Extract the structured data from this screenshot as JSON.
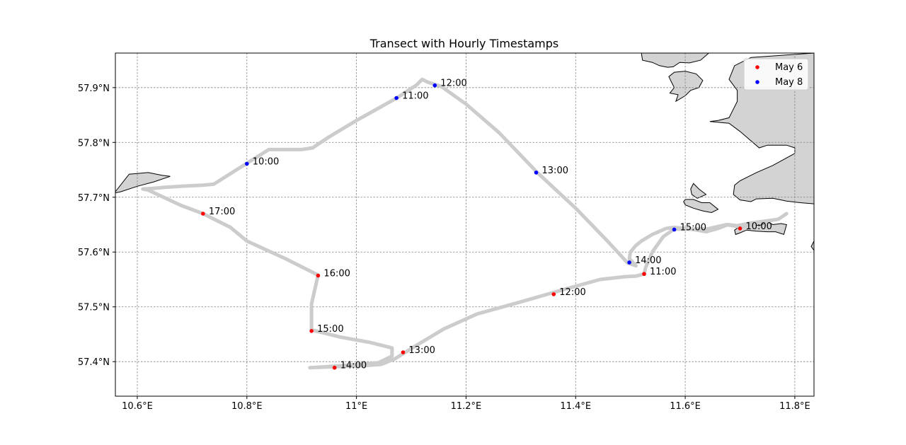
{
  "chart_data": {
    "type": "map",
    "title": "Transect with Hourly Timestamps",
    "xlim": [
      10.56,
      11.835
    ],
    "ylim": [
      57.337,
      57.963
    ],
    "x_ticks": [
      10.6,
      10.8,
      11.0,
      11.2,
      11.4,
      11.6,
      11.8
    ],
    "x_tick_labels": [
      "10.6°E",
      "10.8°E",
      "11°E",
      "11.2°E",
      "11.4°E",
      "11.6°E",
      "11.8°E"
    ],
    "y_ticks": [
      57.4,
      57.5,
      57.6,
      57.7,
      57.8,
      57.9
    ],
    "y_tick_labels": [
      "57.4°N",
      "57.5°N",
      "57.6°N",
      "57.7°N",
      "57.8°N",
      "57.9°N"
    ],
    "grid": true,
    "legend_position": "top-right",
    "colors": {
      "track": "#cccccc",
      "land_fill": "#d3d3d3",
      "land_edge": "#000000",
      "may6": "#ff0000",
      "may8": "#0000ff",
      "grid": "#808080"
    },
    "track": [
      [
        10.915,
        57.389
      ],
      [
        10.96,
        57.391
      ],
      [
        11.0,
        57.392
      ],
      [
        11.045,
        57.395
      ],
      [
        11.07,
        57.405
      ],
      [
        11.11,
        57.43
      ],
      [
        11.16,
        57.46
      ],
      [
        11.22,
        57.487
      ],
      [
        11.3,
        57.509
      ],
      [
        11.38,
        57.532
      ],
      [
        11.445,
        57.55
      ],
      [
        11.49,
        57.555
      ],
      [
        11.51,
        57.556
      ],
      [
        11.525,
        57.56
      ],
      [
        11.528,
        57.572
      ],
      [
        11.54,
        57.6
      ],
      [
        11.56,
        57.628
      ],
      [
        11.58,
        57.642
      ],
      [
        11.61,
        57.642
      ],
      [
        11.638,
        57.637
      ],
      [
        11.66,
        57.643
      ],
      [
        11.678,
        57.65
      ],
      [
        11.695,
        57.648
      ],
      [
        11.72,
        57.653
      ],
      [
        11.75,
        57.657
      ],
      [
        11.77,
        57.66
      ],
      [
        11.785,
        57.67
      ],
      [
        11.77,
        57.66
      ],
      [
        11.74,
        57.655
      ],
      [
        11.7,
        57.646
      ],
      [
        11.675,
        57.65
      ],
      [
        11.64,
        57.642
      ],
      [
        11.61,
        57.642
      ],
      [
        11.58,
        57.645
      ],
      [
        11.565,
        57.643
      ],
      [
        11.54,
        57.632
      ],
      [
        11.52,
        57.62
      ],
      [
        11.51,
        57.612
      ],
      [
        11.5,
        57.6
      ],
      [
        11.498,
        57.588
      ],
      [
        11.51,
        57.575
      ],
      [
        11.495,
        57.58
      ],
      [
        11.46,
        57.618
      ],
      [
        11.4,
        57.68
      ],
      [
        11.33,
        57.745
      ],
      [
        11.26,
        57.818
      ],
      [
        11.2,
        57.87
      ],
      [
        11.155,
        57.902
      ],
      [
        11.13,
        57.91
      ],
      [
        11.12,
        57.915
      ],
      [
        11.11,
        57.905
      ],
      [
        11.075,
        57.882
      ],
      [
        11.0,
        57.84
      ],
      [
        10.95,
        57.81
      ],
      [
        10.92,
        57.79
      ],
      [
        10.9,
        57.787
      ],
      [
        10.855,
        57.787
      ],
      [
        10.84,
        57.787
      ],
      [
        10.8,
        57.762
      ],
      [
        10.74,
        57.724
      ],
      [
        10.72,
        57.722
      ],
      [
        10.68,
        57.72
      ],
      [
        10.65,
        57.718
      ],
      [
        10.628,
        57.716
      ],
      [
        10.61,
        57.715
      ],
      [
        10.62,
        57.713
      ],
      [
        10.68,
        57.685
      ],
      [
        10.72,
        57.67
      ],
      [
        10.77,
        57.645
      ],
      [
        10.8,
        57.62
      ],
      [
        10.87,
        57.588
      ],
      [
        10.93,
        57.558
      ],
      [
        10.918,
        57.505
      ],
      [
        10.918,
        57.458
      ],
      [
        10.97,
        57.445
      ],
      [
        11.025,
        57.435
      ],
      [
        11.065,
        57.425
      ],
      [
        11.065,
        57.41
      ],
      [
        11.04,
        57.398
      ],
      [
        10.965,
        57.392
      ],
      [
        10.915,
        57.389
      ]
    ],
    "series": [
      {
        "name": "May 6",
        "points": [
          {
            "x": 11.7,
            "y": 57.643,
            "label": "10:00"
          },
          {
            "x": 11.525,
            "y": 57.56,
            "label": "11:00"
          },
          {
            "x": 11.36,
            "y": 57.523,
            "label": "12:00"
          },
          {
            "x": 11.085,
            "y": 57.417,
            "label": "13:00"
          },
          {
            "x": 10.96,
            "y": 57.389,
            "label": "14:00"
          },
          {
            "x": 10.918,
            "y": 57.456,
            "label": "15:00"
          },
          {
            "x": 10.93,
            "y": 57.557,
            "label": "16:00"
          },
          {
            "x": 10.72,
            "y": 57.67,
            "label": "17:00"
          }
        ]
      },
      {
        "name": "May 8",
        "points": [
          {
            "x": 10.8,
            "y": 57.761,
            "label": "10:00"
          },
          {
            "x": 11.073,
            "y": 57.881,
            "label": "11:00"
          },
          {
            "x": 11.143,
            "y": 57.904,
            "label": "12:00"
          },
          {
            "x": 11.328,
            "y": 57.745,
            "label": "13:00"
          },
          {
            "x": 11.498,
            "y": 57.581,
            "label": "14:00"
          },
          {
            "x": 11.58,
            "y": 57.641,
            "label": "15:00"
          }
        ]
      }
    ],
    "land": [
      [
        [
          10.56,
          57.71
        ],
        [
          10.585,
          57.742
        ],
        [
          10.62,
          57.745
        ],
        [
          10.645,
          57.74
        ],
        [
          10.66,
          57.738
        ],
        [
          10.63,
          57.728
        ],
        [
          10.6,
          57.72
        ],
        [
          10.57,
          57.71
        ],
        [
          10.56,
          57.708
        ]
      ],
      [
        [
          11.52,
          57.963
        ],
        [
          11.522,
          57.95
        ],
        [
          11.54,
          57.946
        ],
        [
          11.553,
          57.94
        ],
        [
          11.568,
          57.937
        ],
        [
          11.578,
          57.938
        ],
        [
          11.59,
          57.946
        ],
        [
          11.608,
          57.945
        ],
        [
          11.628,
          57.95
        ],
        [
          11.643,
          57.963
        ]
      ],
      [
        [
          11.835,
          57.963
        ],
        [
          11.72,
          57.955
        ],
        [
          11.69,
          57.94
        ],
        [
          11.68,
          57.915
        ],
        [
          11.695,
          57.895
        ],
        [
          11.695,
          57.875
        ],
        [
          11.685,
          57.855
        ],
        [
          11.68,
          57.845
        ],
        [
          11.66,
          57.84
        ],
        [
          11.645,
          57.838
        ],
        [
          11.68,
          57.835
        ],
        [
          11.7,
          57.82
        ],
        [
          11.735,
          57.79
        ],
        [
          11.75,
          57.795
        ],
        [
          11.785,
          57.795
        ],
        [
          11.8,
          57.79
        ],
        [
          11.8,
          57.78
        ],
        [
          11.76,
          57.758
        ],
        [
          11.73,
          57.745
        ],
        [
          11.7,
          57.73
        ],
        [
          11.69,
          57.722
        ],
        [
          11.688,
          57.705
        ],
        [
          11.7,
          57.695
        ],
        [
          11.72,
          57.692
        ],
        [
          11.73,
          57.697
        ],
        [
          11.76,
          57.698
        ],
        [
          11.785,
          57.693
        ],
        [
          11.81,
          57.69
        ],
        [
          11.835,
          57.688
        ]
      ],
      [
        [
          11.835,
          57.62
        ],
        [
          11.83,
          57.61
        ],
        [
          11.835,
          57.603
        ]
      ],
      [
        [
          11.57,
          57.92
        ],
        [
          11.58,
          57.928
        ],
        [
          11.6,
          57.93
        ],
        [
          11.62,
          57.925
        ],
        [
          11.632,
          57.913
        ],
        [
          11.625,
          57.9
        ],
        [
          11.61,
          57.895
        ],
        [
          11.6,
          57.885
        ],
        [
          11.583,
          57.875
        ],
        [
          11.587,
          57.887
        ],
        [
          11.572,
          57.89
        ],
        [
          11.58,
          57.9
        ],
        [
          11.575,
          57.91
        ]
      ],
      [
        [
          11.615,
          57.725
        ],
        [
          11.625,
          57.715
        ],
        [
          11.638,
          57.705
        ],
        [
          11.622,
          57.698
        ],
        [
          11.612,
          57.705
        ],
        [
          11.61,
          57.715
        ]
      ],
      [
        [
          11.6,
          57.696
        ],
        [
          11.615,
          57.696
        ],
        [
          11.63,
          57.69
        ],
        [
          11.645,
          57.69
        ],
        [
          11.66,
          57.678
        ],
        [
          11.648,
          57.672
        ],
        [
          11.632,
          57.675
        ],
        [
          11.615,
          57.68
        ],
        [
          11.6,
          57.686
        ],
        [
          11.597,
          57.692
        ]
      ],
      [
        [
          11.69,
          57.64
        ],
        [
          11.705,
          57.65
        ],
        [
          11.72,
          57.652
        ],
        [
          11.735,
          57.648
        ],
        [
          11.75,
          57.655
        ],
        [
          11.76,
          57.65
        ],
        [
          11.775,
          57.652
        ],
        [
          11.785,
          57.65
        ],
        [
          11.78,
          57.632
        ],
        [
          11.765,
          57.637
        ],
        [
          11.75,
          57.637
        ],
        [
          11.73,
          57.638
        ],
        [
          11.712,
          57.64
        ],
        [
          11.7,
          57.635
        ],
        [
          11.692,
          57.632
        ]
      ]
    ]
  }
}
